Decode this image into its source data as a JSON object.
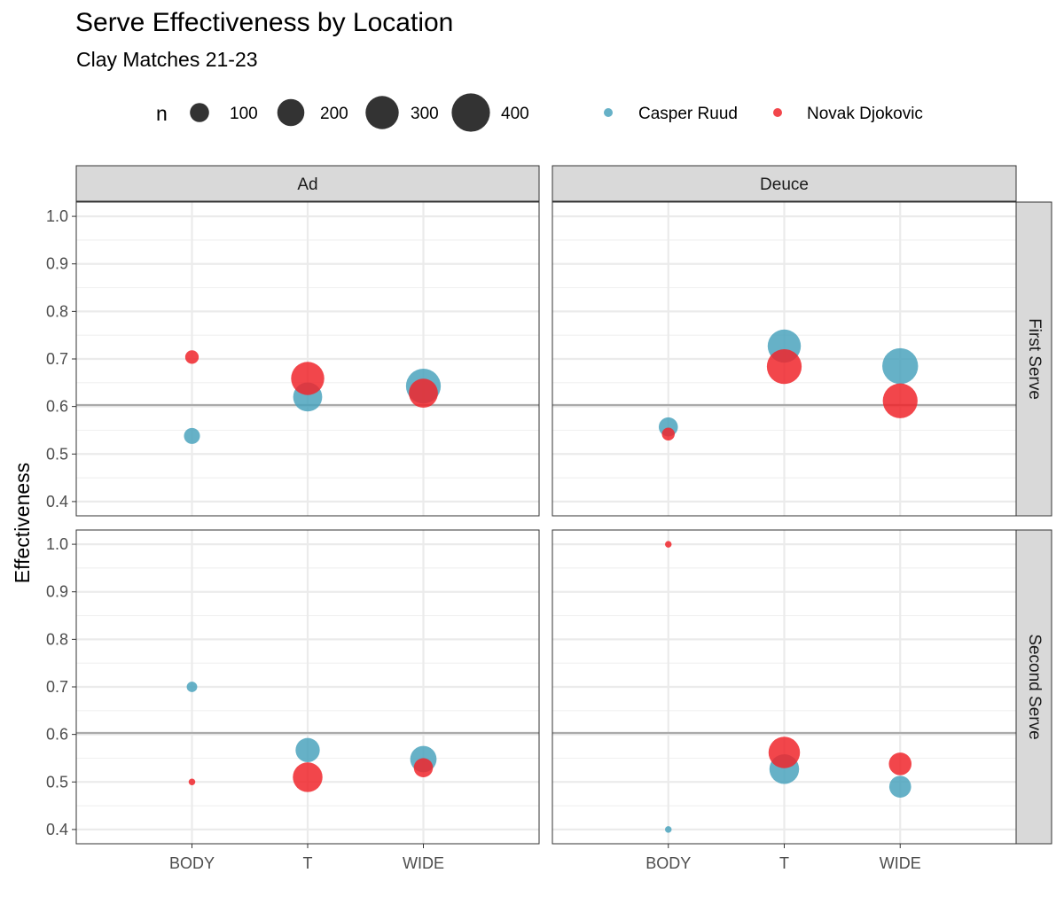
{
  "chart_data": {
    "type": "scatter",
    "title": "Serve Effectiveness by Location",
    "subtitle": "Clay Matches 21-23",
    "ylabel": "Effectiveness",
    "xlabel": "",
    "categories": [
      "BODY",
      "T",
      "WIDE"
    ],
    "ylim": [
      0.37,
      1.03
    ],
    "yticks": [
      1.0,
      0.9,
      0.8,
      0.7,
      0.6,
      0.5,
      0.4
    ],
    "ytick_labels": [
      "1.0",
      "0.9",
      "0.8",
      "0.7",
      "0.6",
      "0.5",
      "0.4"
    ],
    "reference_line": 0.603,
    "columns": [
      "Ad",
      "Deuce"
    ],
    "rows": [
      "First Serve",
      "Second Serve"
    ],
    "size_legend": {
      "title": "n",
      "values": [
        100,
        200,
        300,
        400
      ],
      "labels": [
        "100",
        "200",
        "300",
        "400"
      ]
    },
    "series": [
      {
        "name": "Casper Ruud",
        "color": "#4BA3BD",
        "points": [
          {
            "col": "Ad",
            "row": "First Serve",
            "x": "BODY",
            "y": 0.538,
            "n": 70
          },
          {
            "col": "Ad",
            "row": "First Serve",
            "x": "T",
            "y": 0.62,
            "n": 230
          },
          {
            "col": "Ad",
            "row": "First Serve",
            "x": "WIDE",
            "y": 0.643,
            "n": 330
          },
          {
            "col": "Deuce",
            "row": "First Serve",
            "x": "BODY",
            "y": 0.557,
            "n": 100
          },
          {
            "col": "Deuce",
            "row": "First Serve",
            "x": "T",
            "y": 0.727,
            "n": 300
          },
          {
            "col": "Deuce",
            "row": "First Serve",
            "x": "WIDE",
            "y": 0.685,
            "n": 350
          },
          {
            "col": "Ad",
            "row": "Second Serve",
            "x": "BODY",
            "y": 0.7,
            "n": 30
          },
          {
            "col": "Ad",
            "row": "Second Serve",
            "x": "T",
            "y": 0.567,
            "n": 160
          },
          {
            "col": "Ad",
            "row": "Second Serve",
            "x": "WIDE",
            "y": 0.548,
            "n": 190
          },
          {
            "col": "Deuce",
            "row": "Second Serve",
            "x": "BODY",
            "y": 0.4,
            "n": 12
          },
          {
            "col": "Deuce",
            "row": "Second Serve",
            "x": "T",
            "y": 0.527,
            "n": 240
          },
          {
            "col": "Deuce",
            "row": "Second Serve",
            "x": "WIDE",
            "y": 0.49,
            "n": 130
          }
        ]
      },
      {
        "name": "Novak Djokovic",
        "color": "#F0262B",
        "points": [
          {
            "col": "Ad",
            "row": "First Serve",
            "x": "BODY",
            "y": 0.704,
            "n": 50
          },
          {
            "col": "Ad",
            "row": "First Serve",
            "x": "T",
            "y": 0.659,
            "n": 300
          },
          {
            "col": "Ad",
            "row": "First Serve",
            "x": "WIDE",
            "y": 0.628,
            "n": 230
          },
          {
            "col": "Deuce",
            "row": "First Serve",
            "x": "BODY",
            "y": 0.542,
            "n": 45
          },
          {
            "col": "Deuce",
            "row": "First Serve",
            "x": "T",
            "y": 0.684,
            "n": 330
          },
          {
            "col": "Deuce",
            "row": "First Serve",
            "x": "WIDE",
            "y": 0.612,
            "n": 330
          },
          {
            "col": "Ad",
            "row": "Second Serve",
            "x": "BODY",
            "y": 0.5,
            "n": 12
          },
          {
            "col": "Ad",
            "row": "Second Serve",
            "x": "T",
            "y": 0.51,
            "n": 240
          },
          {
            "col": "Ad",
            "row": "Second Serve",
            "x": "WIDE",
            "y": 0.53,
            "n": 100
          },
          {
            "col": "Deuce",
            "row": "Second Serve",
            "x": "BODY",
            "y": 1.0,
            "n": 12
          },
          {
            "col": "Deuce",
            "row": "Second Serve",
            "x": "T",
            "y": 0.562,
            "n": 270
          },
          {
            "col": "Deuce",
            "row": "Second Serve",
            "x": "WIDE",
            "y": 0.538,
            "n": 140
          }
        ]
      }
    ]
  }
}
